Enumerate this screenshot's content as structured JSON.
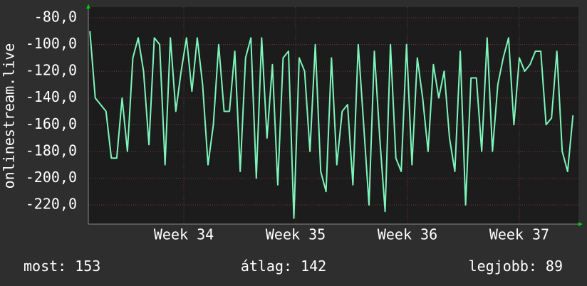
{
  "chart_data": {
    "type": "line",
    "y_label": "onlinestream.live",
    "x": [
      33.16,
      33.208,
      33.256,
      33.304,
      33.352,
      33.4,
      33.448,
      33.496,
      33.544,
      33.592,
      33.64,
      33.688,
      33.736,
      33.784,
      33.832,
      33.88,
      33.928,
      33.976,
      34.024,
      34.072,
      34.12,
      34.168,
      34.216,
      34.264,
      34.312,
      34.36,
      34.408,
      34.456,
      34.504,
      34.552,
      34.6,
      34.648,
      34.696,
      34.744,
      34.792,
      34.84,
      34.888,
      34.936,
      34.984,
      35.032,
      35.08,
      35.128,
      35.176,
      35.224,
      35.272,
      35.32,
      35.368,
      35.416,
      35.464,
      35.512,
      35.56,
      35.608,
      35.656,
      35.704,
      35.752,
      35.8,
      35.848,
      35.896,
      35.944,
      35.992,
      36.04,
      36.088,
      36.136,
      36.184,
      36.232,
      36.28,
      36.328,
      36.376,
      36.424,
      36.472,
      36.52,
      36.568,
      36.616,
      36.664,
      36.712,
      36.76,
      36.808,
      36.856,
      36.904,
      36.952,
      37.0,
      37.048,
      37.096,
      37.144,
      37.192,
      37.24,
      37.288,
      37.336,
      37.384,
      37.432,
      37.48
    ],
    "series": [
      {
        "color": "#7df5bb",
        "values": [
          -90,
          -140,
          -145,
          -150,
          -185,
          -185,
          -140,
          -180,
          -110,
          -95,
          -120,
          -175,
          -95,
          -100,
          -190,
          -95,
          -150,
          -120,
          -95,
          -135,
          -95,
          -130,
          -190,
          -160,
          -100,
          -150,
          -150,
          -105,
          -195,
          -110,
          -95,
          -200,
          -95,
          -170,
          -115,
          -205,
          -110,
          -105,
          -230,
          -110,
          -120,
          -180,
          -100,
          -195,
          -210,
          -110,
          -190,
          -150,
          -145,
          -205,
          -100,
          -160,
          -220,
          -105,
          -170,
          -225,
          -100,
          -185,
          -195,
          -100,
          -190,
          -110,
          -140,
          -180,
          -115,
          -140,
          -120,
          -170,
          -195,
          -105,
          -220,
          -125,
          -125,
          -180,
          -95,
          -180,
          -130,
          -110,
          -95,
          -160,
          -110,
          -120,
          -115,
          -105,
          -105,
          -160,
          -155,
          -105,
          -180,
          -195,
          -153
        ]
      }
    ],
    "xlim": [
      33.146,
      37.529
    ],
    "xticks": [
      {
        "value": 34,
        "label": "Week 34"
      },
      {
        "value": 35,
        "label": "Week 35"
      },
      {
        "value": 36,
        "label": "Week 36"
      },
      {
        "value": 37,
        "label": "Week 37"
      }
    ],
    "ylim": [
      -234.4,
      -72
    ],
    "yticks": [
      {
        "value": -80,
        "label": "-80,0"
      },
      {
        "value": -100,
        "label": "-100,0"
      },
      {
        "value": -120,
        "label": "-120,0"
      },
      {
        "value": -140,
        "label": "-140,0"
      },
      {
        "value": -160,
        "label": "-160,0"
      },
      {
        "value": -180,
        "label": "-180,0"
      },
      {
        "value": -200,
        "label": "-200,0"
      },
      {
        "value": -220,
        "label": "-220,0"
      }
    ],
    "grid": true,
    "footer": [
      {
        "label": "most:",
        "value": 153
      },
      {
        "label": "átlag:",
        "value": 142
      },
      {
        "label": "legjobb:",
        "value": 89
      }
    ]
  }
}
